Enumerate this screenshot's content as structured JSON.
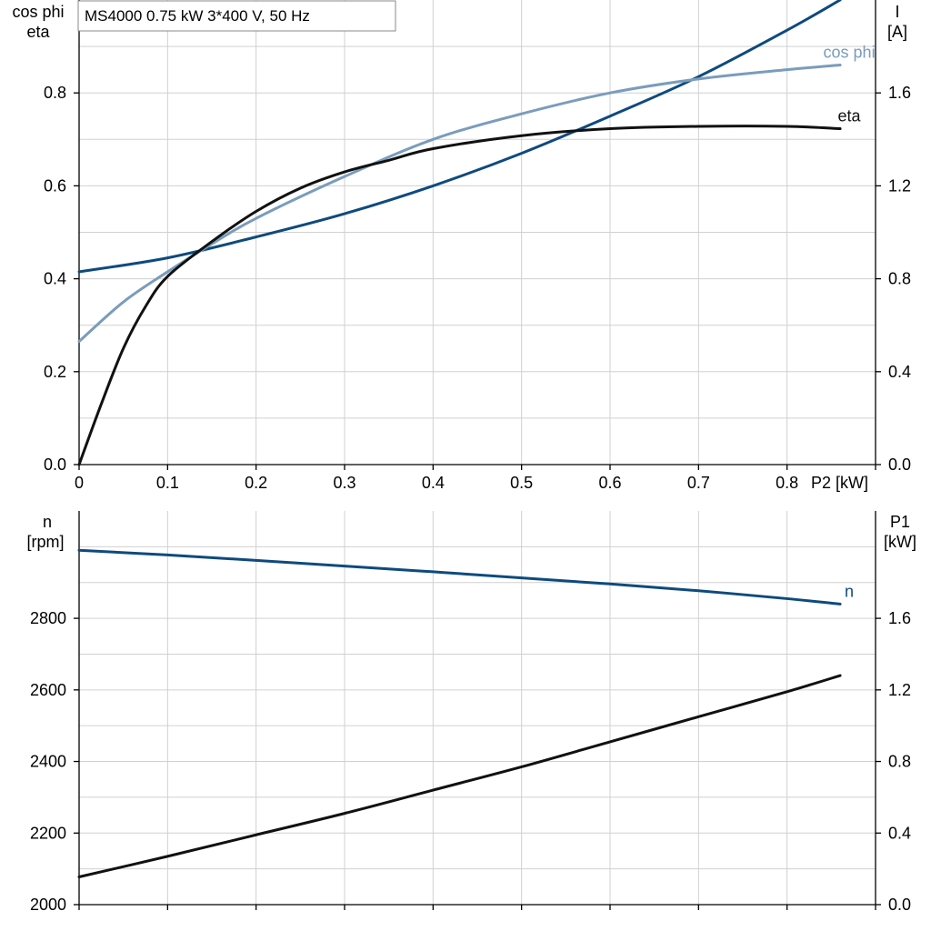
{
  "chart_data": [
    {
      "type": "line",
      "title": "MS4000   0.75 kW   3*400 V, 50 Hz",
      "xlabel": "P2 [kW]",
      "xlim": [
        0,
        0.9
      ],
      "xticks": [
        "0",
        "0.1",
        "0.2",
        "0.3",
        "0.4",
        "0.5",
        "0.6",
        "0.7",
        "0.8"
      ],
      "y_left_label": [
        "cos phi",
        "eta"
      ],
      "ylim_left": [
        0,
        1.0
      ],
      "yticks_left": [
        "0.0",
        "0.2",
        "0.4",
        "0.6",
        "0.8"
      ],
      "y_right_label": [
        "I",
        "[A]"
      ],
      "ylim_right": [
        0,
        2.0
      ],
      "yticks_right": [
        "0.0",
        "0.4",
        "0.8",
        "1.2",
        "1.6"
      ],
      "grid": true,
      "series": [
        {
          "name": "I",
          "axis": "right",
          "color": "#0e4a7e",
          "x": [
            0,
            0.1,
            0.2,
            0.3,
            0.4,
            0.5,
            0.6,
            0.7,
            0.8,
            0.86
          ],
          "y": [
            0.83,
            0.89,
            0.98,
            1.08,
            1.2,
            1.34,
            1.5,
            1.67,
            1.87,
            2.0
          ]
        },
        {
          "name": "cos phi",
          "axis": "left",
          "color": "#7a9cbd",
          "x": [
            0,
            0.05,
            0.1,
            0.15,
            0.2,
            0.3,
            0.4,
            0.5,
            0.6,
            0.7,
            0.8,
            0.86
          ],
          "y": [
            0.265,
            0.35,
            0.415,
            0.475,
            0.53,
            0.62,
            0.7,
            0.755,
            0.8,
            0.83,
            0.85,
            0.86
          ]
        },
        {
          "name": "eta",
          "axis": "left",
          "color": "#111111",
          "x": [
            0,
            0.025,
            0.05,
            0.075,
            0.1,
            0.15,
            0.2,
            0.25,
            0.3,
            0.35,
            0.4,
            0.5,
            0.6,
            0.7,
            0.8,
            0.86
          ],
          "y": [
            0.0,
            0.13,
            0.25,
            0.34,
            0.405,
            0.48,
            0.545,
            0.595,
            0.63,
            0.655,
            0.68,
            0.708,
            0.723,
            0.728,
            0.728,
            0.723
          ]
        }
      ]
    },
    {
      "type": "line",
      "xlim": [
        0,
        0.9
      ],
      "y_left_label": [
        "n",
        "[rpm]"
      ],
      "ylim_left": [
        2000,
        3100
      ],
      "yticks_left": [
        "2000",
        "2200",
        "2400",
        "2600",
        "2800"
      ],
      "y_right_label": [
        "P1",
        "[kW]"
      ],
      "ylim_right": [
        0,
        2.2
      ],
      "yticks_right": [
        "0.0",
        "0.4",
        "0.8",
        "1.2",
        "1.6"
      ],
      "grid": true,
      "series": [
        {
          "name": "n",
          "axis": "left",
          "color": "#0e4a7e",
          "x": [
            0,
            0.1,
            0.2,
            0.3,
            0.4,
            0.5,
            0.6,
            0.7,
            0.8,
            0.86
          ],
          "y": [
            2990,
            2977,
            2962,
            2946,
            2930,
            2913,
            2896,
            2877,
            2855,
            2840
          ]
        },
        {
          "name": "",
          "axis": "right",
          "color": "#111111",
          "x": [
            0,
            0.1,
            0.2,
            0.3,
            0.4,
            0.5,
            0.6,
            0.7,
            0.8,
            0.86
          ],
          "y": [
            0.155,
            0.27,
            0.39,
            0.51,
            0.64,
            0.77,
            0.91,
            1.05,
            1.19,
            1.28
          ]
        }
      ]
    }
  ]
}
